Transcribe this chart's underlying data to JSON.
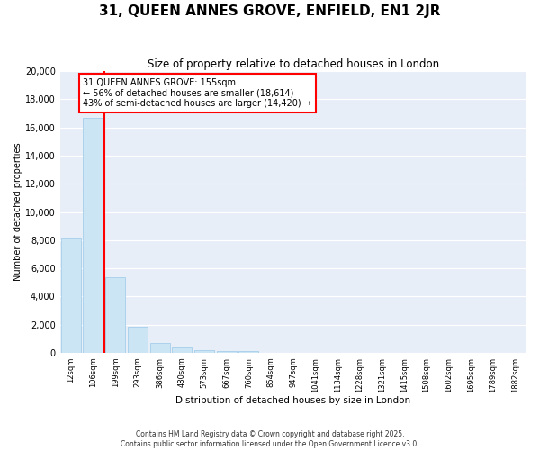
{
  "title": "31, QUEEN ANNES GROVE, ENFIELD, EN1 2JR",
  "subtitle": "Size of property relative to detached houses in London",
  "xlabel": "Distribution of detached houses by size in London",
  "ylabel": "Number of detached properties",
  "bar_color": "#cce5f5",
  "bar_edge_color": "#99c9e8",
  "background_color": "#e8eef8",
  "grid_color": "#ffffff",
  "categories": [
    "12sqm",
    "106sqm",
    "199sqm",
    "293sqm",
    "386sqm",
    "480sqm",
    "573sqm",
    "667sqm",
    "760sqm",
    "854sqm",
    "947sqm",
    "1041sqm",
    "1134sqm",
    "1228sqm",
    "1321sqm",
    "1415sqm",
    "1508sqm",
    "1602sqm",
    "1695sqm",
    "1789sqm",
    "1882sqm"
  ],
  "values": [
    8100,
    16700,
    5350,
    1850,
    700,
    350,
    200,
    150,
    120,
    0,
    0,
    0,
    0,
    0,
    0,
    0,
    0,
    0,
    0,
    0,
    0
  ],
  "ylim": [
    0,
    20000
  ],
  "yticks": [
    0,
    2000,
    4000,
    6000,
    8000,
    10000,
    12000,
    14000,
    16000,
    18000,
    20000
  ],
  "red_line_x": 1.5,
  "annotation_title": "31 QUEEN ANNES GROVE: 155sqm",
  "annotation_line1": "← 56% of detached houses are smaller (18,614)",
  "annotation_line2": "43% of semi-detached houses are larger (14,420) →",
  "footnote1": "Contains HM Land Registry data © Crown copyright and database right 2025.",
  "footnote2": "Contains public sector information licensed under the Open Government Licence v3.0."
}
